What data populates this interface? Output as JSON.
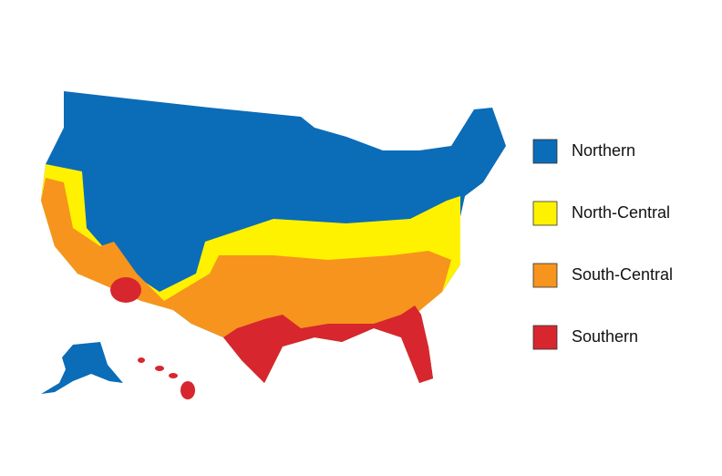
{
  "legend": {
    "items": [
      {
        "label": "Northern",
        "color": "#0b6cb8"
      },
      {
        "label": "North-Central",
        "color": "#fff200"
      },
      {
        "label": "South-Central",
        "color": "#f7941d"
      },
      {
        "label": "Southern",
        "color": "#d7262e"
      }
    ]
  }
}
